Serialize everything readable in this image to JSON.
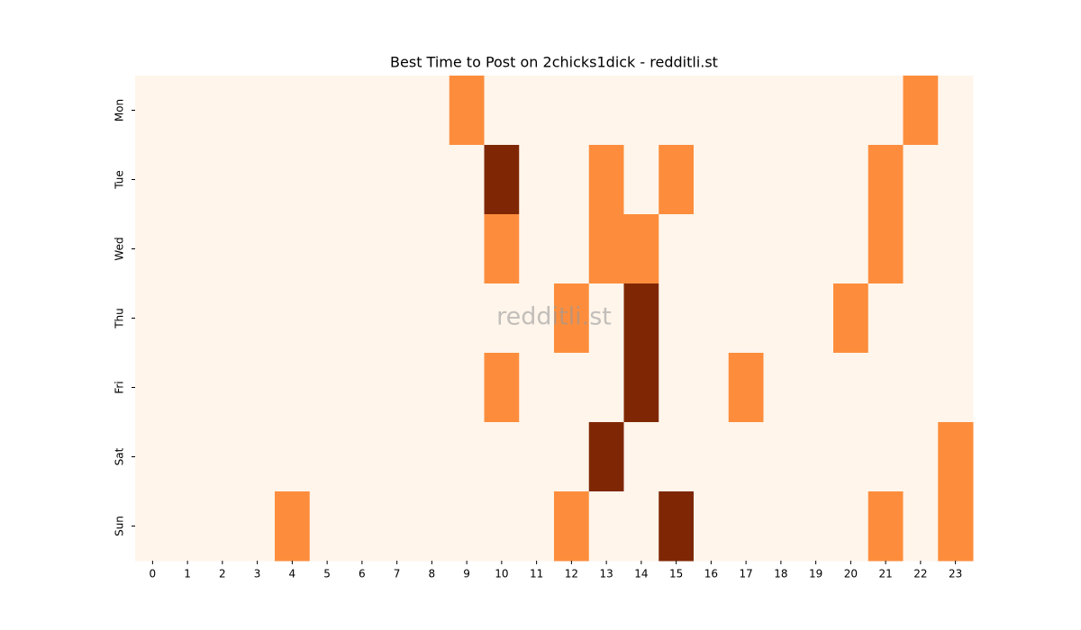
{
  "chart_data": {
    "type": "heatmap",
    "title": "Best Time to Post on 2chicks1dick - redditli.st",
    "watermark": "redditli.st",
    "x": [
      0,
      1,
      2,
      3,
      4,
      5,
      6,
      7,
      8,
      9,
      10,
      11,
      12,
      13,
      14,
      15,
      16,
      17,
      18,
      19,
      20,
      21,
      22,
      23
    ],
    "y": [
      "Mon",
      "Tue",
      "Wed",
      "Thu",
      "Fri",
      "Sat",
      "Sun"
    ],
    "values": [
      [
        0,
        0,
        0,
        0,
        0,
        0,
        0,
        0,
        0,
        1,
        0,
        0,
        0,
        0,
        0,
        0,
        0,
        0,
        0,
        0,
        0,
        0,
        1,
        0
      ],
      [
        0,
        0,
        0,
        0,
        0,
        0,
        0,
        0,
        0,
        0,
        2,
        0,
        0,
        1,
        0,
        1,
        0,
        0,
        0,
        0,
        0,
        1,
        0,
        0
      ],
      [
        0,
        0,
        0,
        0,
        0,
        0,
        0,
        0,
        0,
        0,
        1,
        0,
        0,
        1,
        1,
        0,
        0,
        0,
        0,
        0,
        0,
        1,
        0,
        0
      ],
      [
        0,
        0,
        0,
        0,
        0,
        0,
        0,
        0,
        0,
        0,
        0,
        0,
        1,
        0,
        2,
        0,
        0,
        0,
        0,
        0,
        1,
        0,
        0,
        0
      ],
      [
        0,
        0,
        0,
        0,
        0,
        0,
        0,
        0,
        0,
        0,
        1,
        0,
        0,
        0,
        2,
        0,
        0,
        1,
        0,
        0,
        0,
        0,
        0,
        0
      ],
      [
        0,
        0,
        0,
        0,
        0,
        0,
        0,
        0,
        0,
        0,
        0,
        0,
        0,
        2,
        0,
        0,
        0,
        0,
        0,
        0,
        0,
        0,
        0,
        1
      ],
      [
        0,
        0,
        0,
        0,
        1,
        0,
        0,
        0,
        0,
        0,
        0,
        0,
        1,
        0,
        0,
        2,
        0,
        0,
        0,
        0,
        0,
        1,
        0,
        1
      ]
    ],
    "zlim": [
      0,
      2
    ],
    "colors": [
      "#fff5eb",
      "#fd8d3c",
      "#7f2704"
    ]
  }
}
